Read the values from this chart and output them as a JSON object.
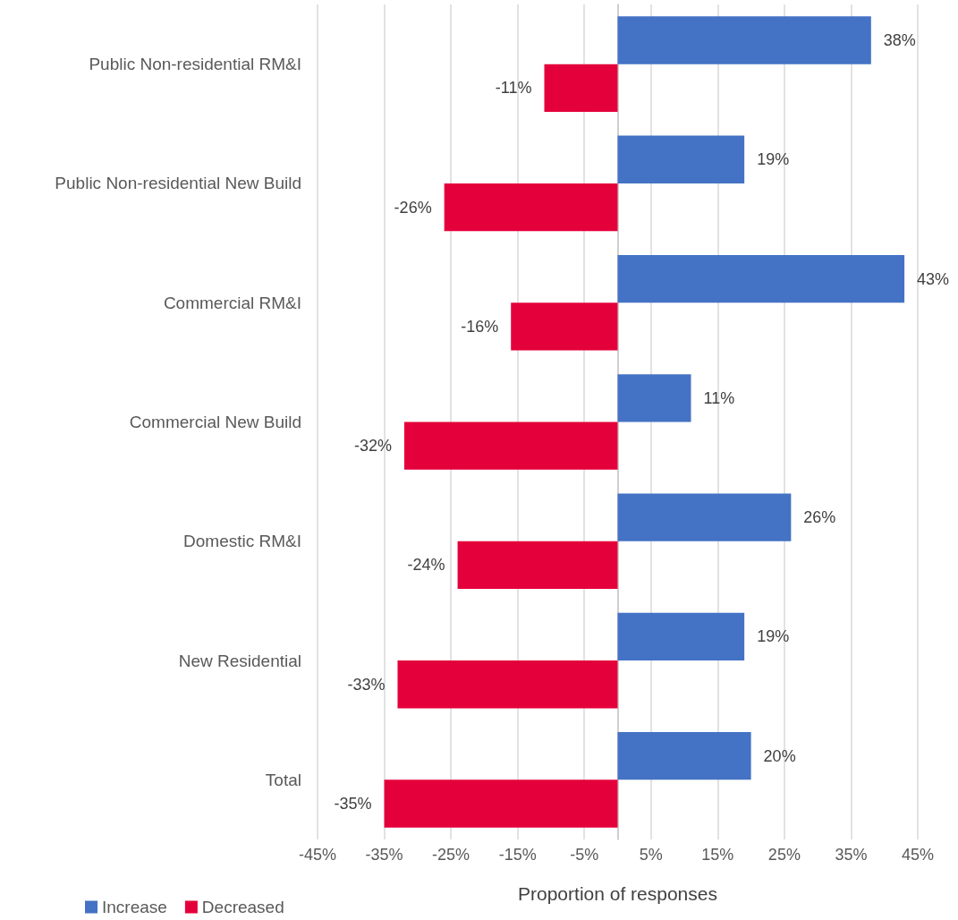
{
  "chart_data": {
    "type": "bar",
    "orientation": "horizontal",
    "xlabel": "Proportion of responses",
    "categories": [
      "Public Non-residential RM&I",
      "Public Non-residential New Build",
      "Commercial RM&I",
      "Commercial New Build",
      "Domestic RM&I",
      "New Residential",
      "Total"
    ],
    "series": [
      {
        "name": "Increase",
        "color": "#4472c4",
        "values": [
          38,
          19,
          43,
          11,
          26,
          19,
          20
        ],
        "value_labels": [
          "38%",
          "19%",
          "43%",
          "11%",
          "26%",
          "19%",
          "20%"
        ]
      },
      {
        "name": "Decreased",
        "color": "#e4003b",
        "values": [
          -11,
          -26,
          -16,
          -32,
          -24,
          -33,
          -35
        ],
        "value_labels": [
          "-11%",
          "-26%",
          "-16%",
          "-32%",
          "-24%",
          "-33%",
          "-35%"
        ]
      }
    ],
    "xlim": [
      -45,
      45
    ],
    "xticks": [
      {
        "value": -45,
        "label": "-45%"
      },
      {
        "value": -35,
        "label": "-35%"
      },
      {
        "value": -25,
        "label": "-25%"
      },
      {
        "value": -15,
        "label": "-15%"
      },
      {
        "value": -5,
        "label": "-5%"
      },
      {
        "value": 5,
        "label": "5%"
      },
      {
        "value": 15,
        "label": "15%"
      },
      {
        "value": 25,
        "label": "25%"
      },
      {
        "value": 35,
        "label": "35%"
      },
      {
        "value": 45,
        "label": "45%"
      }
    ],
    "grid": "x",
    "legend": "bottom left"
  }
}
